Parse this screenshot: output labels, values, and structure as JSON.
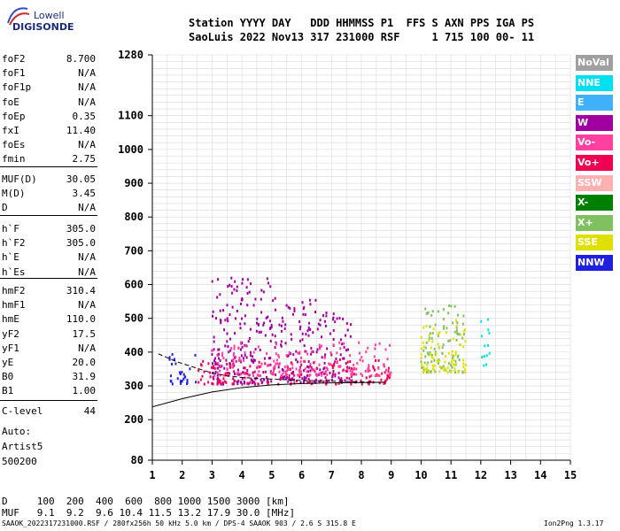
{
  "logo": {
    "line1": "Lowell",
    "line2": "DIGISONDE"
  },
  "header": {
    "row1": "Station YYYY DAY   DDD HHMMSS P1  FFS S AXN PPS IGA PS",
    "row2": "SaoLuis 2022 Nov13 317 231000 RSF     1 715 100 00- 11"
  },
  "params_group1": [
    {
      "k": "foF2",
      "v": "8.700"
    },
    {
      "k": "foF1",
      "v": "N/A"
    },
    {
      "k": "foF1p",
      "v": "N/A"
    },
    {
      "k": "foE",
      "v": "N/A"
    },
    {
      "k": "foEp",
      "v": "0.35"
    },
    {
      "k": "fxI",
      "v": "11.40"
    },
    {
      "k": "foEs",
      "v": "N/A"
    },
    {
      "k": "fmin",
      "v": "2.75"
    }
  ],
  "params_group2": [
    {
      "k": "MUF(D)",
      "v": "30.05"
    },
    {
      "k": "M(D)",
      "v": "3.45"
    },
    {
      "k": "D",
      "v": "N/A"
    }
  ],
  "params_group3": [
    {
      "k": "h`F",
      "v": "305.0"
    },
    {
      "k": "h`F2",
      "v": "305.0"
    },
    {
      "k": "h`E",
      "v": "N/A"
    },
    {
      "k": "h`Es",
      "v": "N/A"
    }
  ],
  "params_group4": [
    {
      "k": "hmF2",
      "v": "310.4"
    },
    {
      "k": "hmF1",
      "v": "N/A"
    },
    {
      "k": "hmE",
      "v": "110.0"
    },
    {
      "k": "yF2",
      "v": "17.5"
    },
    {
      "k": "yF1",
      "v": "N/A"
    },
    {
      "k": "yE",
      "v": "20.0"
    },
    {
      "k": "B0",
      "v": "31.9"
    },
    {
      "k": "B1",
      "v": "1.00"
    }
  ],
  "clevel": {
    "k": "C-level",
    "v": "44"
  },
  "auto": {
    "line1": "Auto:",
    "line2": "Artist5",
    "line3": "500200"
  },
  "legend": [
    {
      "label": "NoVal",
      "color": "#a0a0a0"
    },
    {
      "label": "NNE",
      "color": "#00e0f0"
    },
    {
      "label": "E",
      "color": "#40b0f8"
    },
    {
      "label": "W",
      "color": "#a000a0"
    },
    {
      "label": "Vo-",
      "color": "#ff40a0"
    },
    {
      "label": "Vo+",
      "color": "#f00050"
    },
    {
      "label": "SSW",
      "color": "#ffb0b0"
    },
    {
      "label": "X-",
      "color": "#008000"
    },
    {
      "label": "X+",
      "color": "#80c060"
    },
    {
      "label": "SSE",
      "color": "#e0e000"
    },
    {
      "label": "NNW",
      "color": "#2020e0"
    }
  ],
  "chart_data": {
    "type": "scatter",
    "x_ticks": [
      1,
      2,
      3,
      4,
      5,
      6,
      7,
      8,
      9,
      10,
      11,
      12,
      13,
      14,
      15
    ],
    "y_ticks": [
      80,
      200,
      300,
      400,
      500,
      600,
      700,
      800,
      900,
      1000,
      1100,
      1280
    ],
    "xlim": [
      1,
      15
    ],
    "ylim": [
      80,
      1280
    ],
    "grid": true,
    "profile_curve": {
      "x": [
        1,
        1.5,
        2,
        3,
        4,
        5,
        6,
        7,
        8,
        8.8
      ],
      "y": [
        238,
        250,
        262,
        282,
        295,
        303,
        307,
        309,
        310,
        311
      ]
    },
    "dashed_trace": {
      "x": [
        1.2,
        1.8,
        2.5,
        3,
        3.5,
        4,
        5,
        6,
        7,
        8,
        8.7
      ],
      "y": [
        395,
        372,
        352,
        338,
        330,
        325,
        320,
        316,
        314,
        312,
        310
      ]
    },
    "clusters": [
      {
        "x": [
          1.5,
          2.5
        ],
        "y": [
          305,
          395
        ],
        "color": "#2020e0"
      },
      {
        "x": [
          3,
          5.2
        ],
        "y": [
          305,
          620
        ],
        "color": "#a000a0"
      },
      {
        "x": [
          5.2,
          6.5
        ],
        "y": [
          310,
          560
        ],
        "color": "#a000a0"
      },
      {
        "x": [
          6.5,
          7.7
        ],
        "y": [
          315,
          520
        ],
        "color": "#a000a0"
      },
      {
        "x": [
          2.5,
          9
        ],
        "y": [
          305,
          380
        ],
        "color": "#f00050"
      },
      {
        "x": [
          3,
          9
        ],
        "y": [
          330,
          430
        ],
        "color": "#ff40a0"
      },
      {
        "x": [
          10,
          11.5
        ],
        "y": [
          340,
          540
        ],
        "color": "#80c060"
      },
      {
        "x": [
          10,
          11.5
        ],
        "y": [
          340,
          500
        ],
        "color": "#e0e000"
      },
      {
        "x": [
          12,
          12.3
        ],
        "y": [
          360,
          500
        ],
        "color": "#00e0f0"
      }
    ]
  },
  "footer": {
    "d_line": "D     100  200  400  600  800 1000 1500 3000 [km]",
    "muf_line": "MUF   9.1  9.2  9.6 10.4 11.5 13.2 17.9 30.0 [MHz]",
    "file_line": "SAAOK_2022317231000.RSF / 280fx256h 50 kHz 5.0 km / DPS-4 SAAOK 903 / 2.6 S 315.8 E",
    "version": "Ion2Png 1.3.17"
  }
}
